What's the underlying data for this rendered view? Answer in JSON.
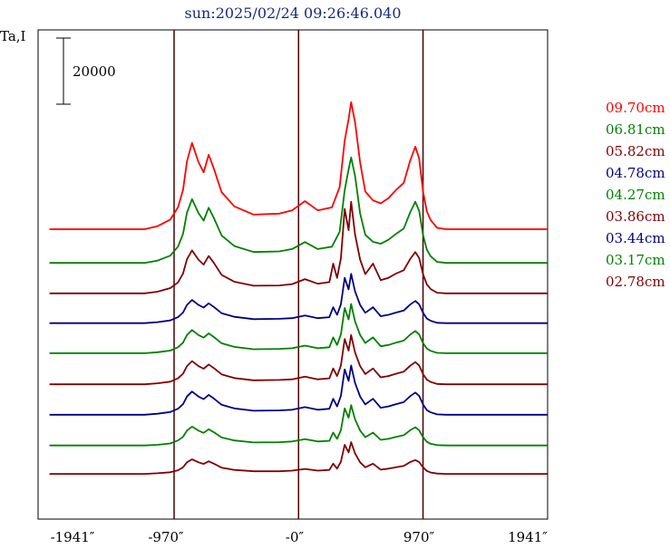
{
  "chart_data": {
    "type": "line",
    "title": "sun:2025/02/24 09:26:46.040",
    "ylabel": "Ta,I",
    "scale_bar_label": "20000",
    "scale_bar_value": 20000,
    "xlim": [
      -2030,
      1941
    ],
    "x_ticks": [
      {
        "value": -1941,
        "label": "-1941″"
      },
      {
        "value": -970,
        "label": "-970″"
      },
      {
        "value": 0,
        "label": "-0″"
      },
      {
        "value": 970,
        "label": "970″"
      },
      {
        "value": 1941,
        "label": "1941″"
      }
    ],
    "vlines": [
      -970,
      0,
      970
    ],
    "series": [
      {
        "name": "09.70cm",
        "color": "#ff0000",
        "baseline": 38800,
        "ampScale": 1.2,
        "x": [
          -1941,
          -1200,
          -1100,
          -1000,
          -940,
          -900,
          -870,
          -830,
          -780,
          -740,
          -700,
          -660,
          -600,
          -500,
          -350,
          -150,
          -50,
          50,
          150,
          260,
          320,
          360,
          390,
          410,
          440,
          480,
          520,
          580,
          640,
          700,
          760,
          820,
          870,
          910,
          940,
          970,
          1000,
          1030,
          1080,
          1150,
          1250,
          1941
        ],
        "y": [
          38800,
          38800,
          39700,
          41700,
          45400,
          50700,
          59300,
          64900,
          59100,
          56000,
          61300,
          57100,
          50000,
          45700,
          43200,
          43500,
          44500,
          47300,
          44500,
          45400,
          51500,
          65600,
          72100,
          77200,
          71200,
          59000,
          50200,
          47500,
          46600,
          48200,
          50700,
          52800,
          59500,
          63800,
          60200,
          50200,
          44200,
          41500,
          39200,
          38800,
          38800,
          38800
        ]
      },
      {
        "name": "06.81cm",
        "color": "#008000",
        "baseline": 28600,
        "ampScale": 1.2,
        "x": [
          -1941,
          -1200,
          -1100,
          -1000,
          -940,
          -900,
          -870,
          -830,
          -780,
          -740,
          -700,
          -660,
          -600,
          -500,
          -350,
          -150,
          -50,
          50,
          150,
          260,
          320,
          360,
          390,
          410,
          440,
          480,
          520,
          580,
          640,
          700,
          760,
          820,
          870,
          910,
          940,
          970,
          1000,
          1030,
          1080,
          1150,
          1250,
          1941
        ],
        "y": [
          28600,
          28600,
          29300,
          30800,
          33500,
          37400,
          43800,
          47900,
          43700,
          41400,
          45300,
          42200,
          36900,
          33700,
          31900,
          32100,
          32800,
          34900,
          32800,
          33500,
          38000,
          50600,
          56900,
          60500,
          55000,
          43600,
          37100,
          35000,
          34400,
          35600,
          37400,
          39000,
          43900,
          47100,
          44400,
          37100,
          32600,
          30600,
          28900,
          28600,
          28600,
          28600
        ]
      },
      {
        "name": "05.82cm",
        "color": "#800000",
        "baseline": 19400,
        "ampScale": 1.0,
        "x": [
          -1941,
          -1200,
          -1100,
          -1000,
          -940,
          -900,
          -870,
          -830,
          -780,
          -740,
          -700,
          -660,
          -600,
          -500,
          -350,
          -150,
          -50,
          50,
          150,
          240,
          270,
          300,
          330,
          360,
          390,
          410,
          440,
          480,
          520,
          580,
          640,
          700,
          760,
          820,
          870,
          910,
          940,
          970,
          1000,
          1030,
          1080,
          1150,
          1250,
          1941
        ],
        "y": [
          19400,
          19400,
          19900,
          21000,
          22700,
          25400,
          29700,
          32400,
          29600,
          28100,
          30700,
          28600,
          25000,
          22900,
          21700,
          21800,
          22200,
          23700,
          22300,
          22800,
          28400,
          24100,
          30000,
          44900,
          38500,
          47100,
          37200,
          29600,
          25200,
          28400,
          23400,
          24100,
          25400,
          26400,
          29800,
          31900,
          30100,
          25200,
          22100,
          20700,
          19600,
          19400,
          19400,
          19400
        ]
      },
      {
        "name": "04.78cm",
        "color": "#000080",
        "baseline": 10400,
        "ampScale": 0.85,
        "x": [
          -1941,
          -1200,
          -1100,
          -1000,
          -940,
          -900,
          -870,
          -830,
          -780,
          -740,
          -700,
          -660,
          -600,
          -500,
          -350,
          -150,
          -50,
          50,
          150,
          240,
          270,
          300,
          330,
          360,
          390,
          410,
          440,
          480,
          520,
          580,
          640,
          700,
          760,
          820,
          870,
          910,
          940,
          970,
          1000,
          1030,
          1080,
          1150,
          1250,
          1941
        ],
        "y": [
          10400,
          10400,
          10700,
          11200,
          12200,
          13600,
          15900,
          17400,
          15900,
          15100,
          16400,
          15300,
          13400,
          12300,
          11600,
          11700,
          11900,
          12700,
          11900,
          12200,
          15200,
          12900,
          16100,
          24100,
          20600,
          25300,
          20000,
          15900,
          13500,
          15200,
          12500,
          12900,
          13600,
          14200,
          16000,
          17100,
          16100,
          13500,
          11800,
          11100,
          10500,
          10400,
          10400,
          10400
        ]
      },
      {
        "name": "04.27cm",
        "color": "#008000",
        "baseline": 1300,
        "ampScale": 0.85,
        "x": [
          -1941,
          -1200,
          -1100,
          -1000,
          -940,
          -900,
          -870,
          -830,
          -780,
          -740,
          -700,
          -660,
          -600,
          -500,
          -350,
          -150,
          -50,
          50,
          150,
          240,
          270,
          300,
          330,
          360,
          390,
          410,
          440,
          480,
          520,
          580,
          640,
          700,
          760,
          820,
          870,
          910,
          940,
          970,
          1000,
          1030,
          1080,
          1150,
          1250,
          1941
        ],
        "y": [
          1300,
          1300,
          1600,
          2100,
          3100,
          4500,
          6800,
          8300,
          6800,
          6000,
          7300,
          6200,
          4300,
          3200,
          2500,
          2600,
          2800,
          3600,
          2800,
          3100,
          6100,
          3800,
          7000,
          15000,
          11500,
          16200,
          10900,
          6800,
          4400,
          6100,
          3400,
          3800,
          4500,
          5100,
          6900,
          8000,
          7000,
          4400,
          2700,
          2000,
          1400,
          1300,
          1300,
          1300
        ]
      },
      {
        "name": "03.86cm",
        "color": "#800000",
        "baseline": -8100,
        "ampScale": 0.85,
        "x": [
          -1941,
          -1200,
          -1100,
          -1000,
          -940,
          -900,
          -870,
          -830,
          -780,
          -740,
          -700,
          -660,
          -600,
          -500,
          -350,
          -150,
          -50,
          50,
          150,
          240,
          270,
          300,
          330,
          360,
          390,
          410,
          440,
          480,
          520,
          580,
          640,
          700,
          760,
          820,
          870,
          910,
          940,
          970,
          1000,
          1030,
          1080,
          1150,
          1250,
          1941
        ],
        "y": [
          -8100,
          -8100,
          -7800,
          -7300,
          -6300,
          -4900,
          -2600,
          -1100,
          -2600,
          -3400,
          -2100,
          -3200,
          -5100,
          -6200,
          -6900,
          -6800,
          -6600,
          -5800,
          -6600,
          -6300,
          -3300,
          -5600,
          -2400,
          5600,
          2100,
          6800,
          1500,
          -2600,
          -5000,
          -3300,
          -6000,
          -5600,
          -4900,
          -4300,
          -2500,
          -1400,
          -2400,
          -5000,
          -6700,
          -7400,
          -8000,
          -8100,
          -8100,
          -8100
        ]
      },
      {
        "name": "03.44cm",
        "color": "#000080",
        "baseline": -17300,
        "ampScale": 0.85,
        "x": [
          -1941,
          -1200,
          -1100,
          -1000,
          -940,
          -900,
          -870,
          -830,
          -780,
          -740,
          -700,
          -660,
          -600,
          -500,
          -350,
          -150,
          -50,
          50,
          150,
          240,
          270,
          300,
          330,
          360,
          390,
          410,
          440,
          480,
          520,
          580,
          640,
          700,
          760,
          820,
          870,
          910,
          940,
          970,
          1000,
          1030,
          1080,
          1150,
          1250,
          1941
        ],
        "y": [
          -17300,
          -17300,
          -17000,
          -16500,
          -15500,
          -14100,
          -11800,
          -10300,
          -11800,
          -12600,
          -11300,
          -12400,
          -14300,
          -15400,
          -16100,
          -16000,
          -15800,
          -15000,
          -15800,
          -15500,
          -12500,
          -14800,
          -11600,
          -3600,
          -7100,
          -2400,
          -7700,
          -11800,
          -14200,
          -12500,
          -15200,
          -14800,
          -14100,
          -13500,
          -11700,
          -10600,
          -11600,
          -14200,
          -15900,
          -16600,
          -17200,
          -17300,
          -17300,
          -17300
        ]
      },
      {
        "name": "03.17cm",
        "color": "#008000",
        "baseline": -26600,
        "ampScale": 0.7,
        "x": [
          -1941,
          -1200,
          -1100,
          -1000,
          -940,
          -900,
          -870,
          -830,
          -780,
          -740,
          -700,
          -660,
          -600,
          -500,
          -350,
          -150,
          -50,
          50,
          150,
          240,
          270,
          300,
          330,
          360,
          390,
          410,
          440,
          480,
          520,
          580,
          640,
          700,
          760,
          820,
          870,
          910,
          940,
          970,
          1000,
          1030,
          1080,
          1150,
          1250,
          1941
        ],
        "y": [
          -26600,
          -26600,
          -26400,
          -26000,
          -25100,
          -24000,
          -22100,
          -20900,
          -22100,
          -22800,
          -21700,
          -22600,
          -24200,
          -25100,
          -25700,
          -25600,
          -25400,
          -24700,
          -25400,
          -25200,
          -22700,
          -24600,
          -22000,
          -15400,
          -18200,
          -14400,
          -18700,
          -22100,
          -24100,
          -22700,
          -24900,
          -24600,
          -24000,
          -23500,
          -22000,
          -21100,
          -22000,
          -24100,
          -25500,
          -26100,
          -26500,
          -26600,
          -26600,
          -26600
        ]
      },
      {
        "name": "02.78cm",
        "color": "#800000",
        "baseline": -35200,
        "ampScale": 0.55,
        "x": [
          -1941,
          -1200,
          -1100,
          -1000,
          -940,
          -900,
          -870,
          -830,
          -780,
          -740,
          -700,
          -660,
          -600,
          -500,
          -350,
          -150,
          -50,
          50,
          150,
          240,
          270,
          300,
          330,
          360,
          390,
          410,
          440,
          480,
          520,
          580,
          640,
          700,
          760,
          820,
          870,
          910,
          940,
          970,
          1000,
          1030,
          1080,
          1150,
          1250,
          1941
        ],
        "y": [
          -35200,
          -35200,
          -35000,
          -34700,
          -34100,
          -33200,
          -31700,
          -30800,
          -31700,
          -32200,
          -31400,
          -32100,
          -33300,
          -34000,
          -34400,
          -34400,
          -34200,
          -33700,
          -34200,
          -34000,
          -32100,
          -33600,
          -31500,
          -26400,
          -28700,
          -25600,
          -29000,
          -31700,
          -33200,
          -32100,
          -33900,
          -33600,
          -33200,
          -32800,
          -31600,
          -31000,
          -31600,
          -33200,
          -34300,
          -34800,
          -35100,
          -35200,
          -35200,
          -35200
        ]
      }
    ]
  }
}
